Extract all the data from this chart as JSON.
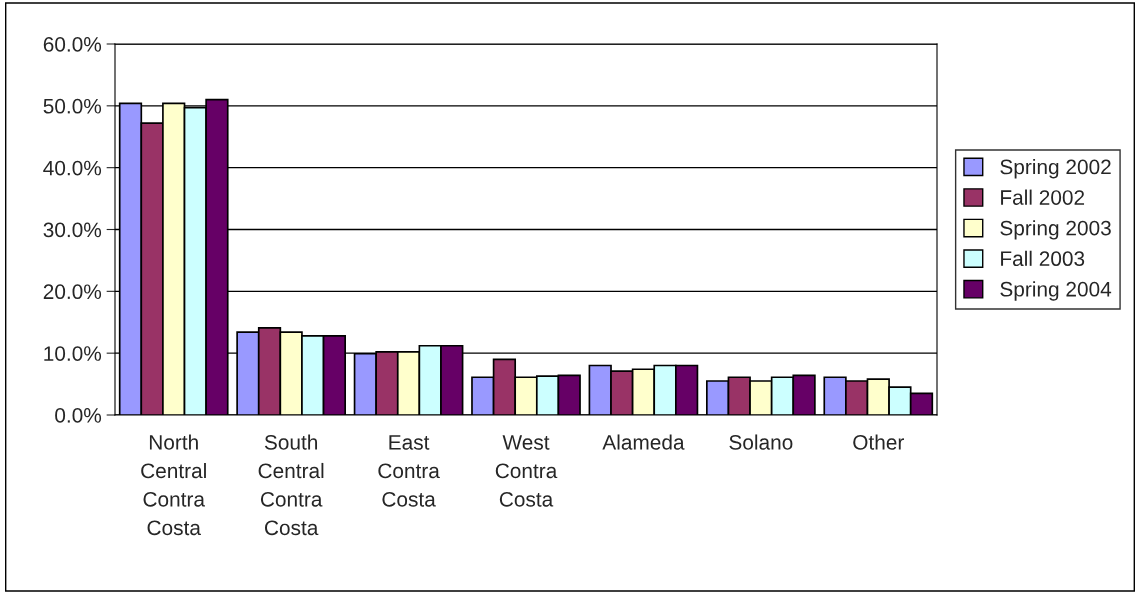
{
  "chart_data": {
    "type": "bar",
    "categories": [
      "North Central Contra Costa",
      "South Central Contra Costa",
      "East Contra Costa",
      "West Contra Costa",
      "Alameda",
      "Solano",
      "Other"
    ],
    "series": [
      {
        "name": "Spring 2002",
        "color": "#9999ff",
        "values": [
          50.4,
          13.4,
          9.9,
          6.1,
          8.0,
          5.5,
          6.1
        ]
      },
      {
        "name": "Fall 2002",
        "color": "#993366",
        "values": [
          47.2,
          14.1,
          10.2,
          9.0,
          7.1,
          6.1,
          5.5
        ]
      },
      {
        "name": "Spring 2003",
        "color": "#ffffcc",
        "values": [
          50.4,
          13.4,
          10.2,
          6.1,
          7.4,
          5.5,
          5.8
        ]
      },
      {
        "name": "Fall 2003",
        "color": "#ccffff",
        "values": [
          49.7,
          12.8,
          11.2,
          6.3,
          8.0,
          6.1,
          4.5
        ]
      },
      {
        "name": "Spring 2004",
        "color": "#660066",
        "values": [
          51.0,
          12.8,
          11.2,
          6.4,
          8.0,
          6.4,
          3.5
        ]
      }
    ],
    "ylim": [
      0,
      60
    ],
    "yticks": [
      {
        "value": 0,
        "label": "0.0%"
      },
      {
        "value": 10,
        "label": "10.0%"
      },
      {
        "value": 20,
        "label": "20.0%"
      },
      {
        "value": 30,
        "label": "30.0%"
      },
      {
        "value": 40,
        "label": "40.0%"
      },
      {
        "value": 50,
        "label": "50.0%"
      },
      {
        "value": 60,
        "label": "60.0%"
      }
    ],
    "grid": "y",
    "legend": "right"
  }
}
